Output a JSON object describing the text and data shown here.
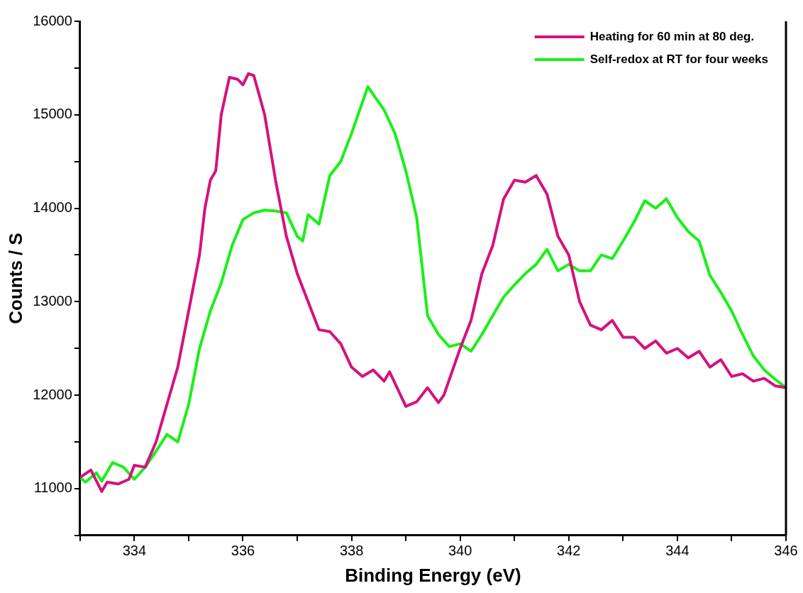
{
  "chart_data": {
    "type": "line",
    "xlabel": "Binding Energy (eV)",
    "ylabel": "Counts / S",
    "xlim": [
      333,
      346
    ],
    "xticks": [
      {
        "value": 333,
        "label": null
      },
      334,
      {
        "value": 335,
        "label": null
      },
      336,
      {
        "value": 337,
        "label": null
      },
      338,
      {
        "value": 339,
        "label": null
      },
      340,
      {
        "value": 341,
        "label": null
      },
      342,
      {
        "value": 343,
        "label": null
      },
      344,
      {
        "value": 345,
        "label": null
      },
      346
    ],
    "ylim": [
      10500,
      16000
    ],
    "yticks": [
      {
        "value": 10500,
        "label": null
      },
      11000,
      {
        "value": 11500,
        "label": null
      },
      12000,
      {
        "value": 12500,
        "label": null
      },
      13000,
      {
        "value": 13500,
        "label": null
      },
      14000,
      {
        "value": 14500,
        "label": null
      },
      15000,
      {
        "value": 15500,
        "label": null
      },
      16000
    ],
    "grid": false,
    "legend": "top right",
    "marker": "none",
    "line_style": "solid",
    "series": [
      {
        "name": "Heating for 60 min at 80 deg.",
        "color": "#d4127f",
        "x": [
          333.0,
          333.2,
          333.4,
          333.5,
          333.7,
          333.9,
          334.0,
          334.2,
          334.4,
          334.6,
          334.8,
          335.0,
          335.2,
          335.3,
          335.4,
          335.5,
          335.6,
          335.75,
          335.9,
          336.0,
          336.1,
          336.2,
          336.4,
          336.6,
          336.8,
          337.0,
          337.2,
          337.4,
          337.6,
          337.8,
          338.0,
          338.2,
          338.4,
          338.6,
          338.7,
          339.0,
          339.2,
          339.4,
          339.6,
          339.7,
          340.0,
          340.2,
          340.4,
          340.6,
          340.8,
          341.0,
          341.2,
          341.4,
          341.6,
          341.8,
          342.0,
          342.2,
          342.4,
          342.6,
          342.8,
          343.0,
          343.2,
          343.4,
          343.6,
          343.8,
          344.0,
          344.2,
          344.4,
          344.6,
          344.8,
          345.0,
          345.2,
          345.4,
          345.6,
          345.8,
          346.0
        ],
        "values": [
          11120,
          11200,
          10970,
          11070,
          11050,
          11100,
          11250,
          11230,
          11500,
          11900,
          12300,
          12900,
          13500,
          14000,
          14300,
          14400,
          15000,
          15400,
          15380,
          15320,
          15440,
          15420,
          15000,
          14300,
          13700,
          13300,
          13000,
          12700,
          12680,
          12550,
          12300,
          12200,
          12270,
          12150,
          12250,
          11880,
          11930,
          12080,
          11920,
          12000,
          12500,
          12800,
          13300,
          13600,
          14100,
          14300,
          14280,
          14350,
          14150,
          13700,
          13500,
          13000,
          12750,
          12700,
          12800,
          12620,
          12620,
          12500,
          12580,
          12450,
          12500,
          12400,
          12470,
          12300,
          12380,
          12200,
          12230,
          12150,
          12180,
          12100,
          12080
        ]
      },
      {
        "name": "Self-redox at RT for four weeks",
        "color": "#19f019",
        "x": [
          333.0,
          333.1,
          333.3,
          333.4,
          333.6,
          333.8,
          334.0,
          334.2,
          334.4,
          334.6,
          334.8,
          335.0,
          335.2,
          335.4,
          335.6,
          335.8,
          336.0,
          336.2,
          336.4,
          336.6,
          336.8,
          337.0,
          337.1,
          337.2,
          337.4,
          337.6,
          337.8,
          338.0,
          338.3,
          338.6,
          338.8,
          339.0,
          339.2,
          339.4,
          339.6,
          339.8,
          340.0,
          340.2,
          340.4,
          340.6,
          340.8,
          341.0,
          341.2,
          341.4,
          341.6,
          341.8,
          342.0,
          342.2,
          342.4,
          342.6,
          342.8,
          343.0,
          343.2,
          343.4,
          343.6,
          343.8,
          344.0,
          344.2,
          344.4,
          344.6,
          344.8,
          345.0,
          345.2,
          345.4,
          345.6,
          345.8,
          346.0
        ],
        "values": [
          11120,
          11070,
          11170,
          11080,
          11280,
          11230,
          11100,
          11230,
          11400,
          11580,
          11500,
          11900,
          12500,
          12900,
          13200,
          13600,
          13880,
          13950,
          13980,
          13970,
          13950,
          13700,
          13650,
          13930,
          13830,
          14350,
          14500,
          14800,
          15300,
          15050,
          14800,
          14400,
          13900,
          12850,
          12650,
          12520,
          12550,
          12470,
          12650,
          12850,
          13050,
          13180,
          13300,
          13400,
          13560,
          13330,
          13400,
          13330,
          13330,
          13500,
          13460,
          13650,
          13850,
          14080,
          14000,
          14100,
          13900,
          13750,
          13650,
          13280,
          13100,
          12900,
          12650,
          12420,
          12270,
          12170,
          12080
        ]
      }
    ]
  }
}
